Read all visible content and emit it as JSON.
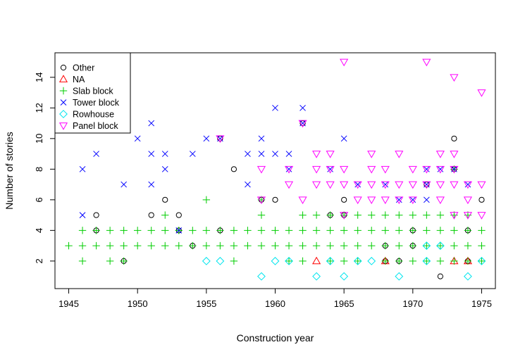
{
  "chart_data": {
    "type": "scatter",
    "xlabel": "Construction year",
    "ylabel": "Number of stories",
    "xlim": [
      1944,
      1976
    ],
    "ylim": [
      0.2,
      15.6
    ],
    "x_ticks": [
      1945,
      1950,
      1955,
      1960,
      1965,
      1970,
      1975
    ],
    "y_ticks": [
      2,
      4,
      6,
      8,
      10,
      12,
      14
    ],
    "grid": false,
    "legend_position": "top-left",
    "series": [
      {
        "name": "Other",
        "marker": "circle",
        "color": "#000000",
        "points": [
          [
            1947,
            5
          ],
          [
            1947,
            4
          ],
          [
            1949,
            2
          ],
          [
            1951,
            5
          ],
          [
            1952,
            6
          ],
          [
            1953,
            5
          ],
          [
            1953,
            4
          ],
          [
            1954,
            3
          ],
          [
            1956,
            10
          ],
          [
            1956,
            4
          ],
          [
            1957,
            8
          ],
          [
            1959,
            6
          ],
          [
            1960,
            6
          ],
          [
            1962,
            11
          ],
          [
            1964,
            5
          ],
          [
            1965,
            6
          ],
          [
            1965,
            5
          ],
          [
            1968,
            3
          ],
          [
            1968,
            2
          ],
          [
            1969,
            2
          ],
          [
            1970,
            4
          ],
          [
            1970,
            3
          ],
          [
            1971,
            7
          ],
          [
            1972,
            1
          ],
          [
            1973,
            10
          ],
          [
            1973,
            8
          ],
          [
            1974,
            4
          ],
          [
            1974,
            2
          ],
          [
            1975,
            6
          ]
        ]
      },
      {
        "name": "NA",
        "marker": "triangle-up",
        "color": "#ff0000",
        "points": [
          [
            1963,
            2
          ],
          [
            1968,
            2
          ],
          [
            1973,
            2
          ],
          [
            1974,
            2
          ]
        ]
      },
      {
        "name": "Slab block",
        "marker": "plus",
        "color": "#00cd00",
        "points": [
          [
            1945,
            3
          ],
          [
            1946,
            4
          ],
          [
            1946,
            3
          ],
          [
            1946,
            2
          ],
          [
            1947,
            4
          ],
          [
            1947,
            3
          ],
          [
            1948,
            4
          ],
          [
            1948,
            3
          ],
          [
            1948,
            2
          ],
          [
            1949,
            4
          ],
          [
            1949,
            3
          ],
          [
            1949,
            2
          ],
          [
            1950,
            4
          ],
          [
            1950,
            3
          ],
          [
            1951,
            4
          ],
          [
            1951,
            3
          ],
          [
            1952,
            5
          ],
          [
            1952,
            4
          ],
          [
            1952,
            3
          ],
          [
            1953,
            4
          ],
          [
            1953,
            3
          ],
          [
            1954,
            4
          ],
          [
            1954,
            3
          ],
          [
            1955,
            6
          ],
          [
            1955,
            4
          ],
          [
            1955,
            3
          ],
          [
            1956,
            4
          ],
          [
            1956,
            3
          ],
          [
            1957,
            4
          ],
          [
            1957,
            3
          ],
          [
            1957,
            2
          ],
          [
            1958,
            4
          ],
          [
            1958,
            3
          ],
          [
            1959,
            6
          ],
          [
            1959,
            5
          ],
          [
            1959,
            4
          ],
          [
            1959,
            3
          ],
          [
            1960,
            4
          ],
          [
            1960,
            3
          ],
          [
            1961,
            4
          ],
          [
            1961,
            3
          ],
          [
            1961,
            2
          ],
          [
            1962,
            5
          ],
          [
            1962,
            4
          ],
          [
            1962,
            3
          ],
          [
            1962,
            2
          ],
          [
            1963,
            5
          ],
          [
            1963,
            4
          ],
          [
            1963,
            3
          ],
          [
            1964,
            5
          ],
          [
            1964,
            4
          ],
          [
            1964,
            3
          ],
          [
            1964,
            2
          ],
          [
            1965,
            5
          ],
          [
            1965,
            4
          ],
          [
            1965,
            3
          ],
          [
            1965,
            2
          ],
          [
            1966,
            5
          ],
          [
            1966,
            4
          ],
          [
            1966,
            3
          ],
          [
            1966,
            2
          ],
          [
            1967,
            5
          ],
          [
            1967,
            4
          ],
          [
            1967,
            3
          ],
          [
            1968,
            5
          ],
          [
            1968,
            4
          ],
          [
            1968,
            3
          ],
          [
            1968,
            2
          ],
          [
            1969,
            5
          ],
          [
            1969,
            4
          ],
          [
            1969,
            3
          ],
          [
            1969,
            2
          ],
          [
            1970,
            5
          ],
          [
            1970,
            4
          ],
          [
            1970,
            3
          ],
          [
            1970,
            2
          ],
          [
            1971,
            5
          ],
          [
            1971,
            4
          ],
          [
            1971,
            3
          ],
          [
            1971,
            2
          ],
          [
            1972,
            5
          ],
          [
            1972,
            4
          ],
          [
            1972,
            3
          ],
          [
            1972,
            2
          ],
          [
            1973,
            8
          ],
          [
            1973,
            5
          ],
          [
            1973,
            4
          ],
          [
            1973,
            3
          ],
          [
            1973,
            2
          ],
          [
            1974,
            5
          ],
          [
            1974,
            4
          ],
          [
            1974,
            3
          ],
          [
            1974,
            2
          ],
          [
            1975,
            4
          ],
          [
            1975,
            3
          ],
          [
            1975,
            2
          ]
        ]
      },
      {
        "name": "Tower block",
        "marker": "cross",
        "color": "#0000ff",
        "points": [
          [
            1946,
            8
          ],
          [
            1946,
            5
          ],
          [
            1947,
            9
          ],
          [
            1949,
            7
          ],
          [
            1950,
            10
          ],
          [
            1951,
            11
          ],
          [
            1951,
            9
          ],
          [
            1951,
            7
          ],
          [
            1952,
            9
          ],
          [
            1952,
            8
          ],
          [
            1953,
            4
          ],
          [
            1954,
            9
          ],
          [
            1955,
            10
          ],
          [
            1956,
            10
          ],
          [
            1958,
            9
          ],
          [
            1958,
            7
          ],
          [
            1959,
            10
          ],
          [
            1959,
            9
          ],
          [
            1960,
            12
          ],
          [
            1960,
            9
          ],
          [
            1961,
            9
          ],
          [
            1961,
            8
          ],
          [
            1962,
            12
          ],
          [
            1962,
            11
          ],
          [
            1964,
            8
          ],
          [
            1965,
            10
          ],
          [
            1966,
            7
          ],
          [
            1968,
            7
          ],
          [
            1969,
            6
          ],
          [
            1970,
            6
          ],
          [
            1971,
            8
          ],
          [
            1971,
            7
          ],
          [
            1971,
            6
          ],
          [
            1972,
            8
          ],
          [
            1973,
            8
          ],
          [
            1974,
            7
          ]
        ]
      },
      {
        "name": "Rowhouse",
        "marker": "diamond",
        "color": "#00e5ee",
        "points": [
          [
            1955,
            2
          ],
          [
            1956,
            2
          ],
          [
            1959,
            1
          ],
          [
            1960,
            2
          ],
          [
            1961,
            2
          ],
          [
            1963,
            1
          ],
          [
            1964,
            2
          ],
          [
            1965,
            1
          ],
          [
            1966,
            2
          ],
          [
            1967,
            2
          ],
          [
            1969,
            1
          ],
          [
            1971,
            3
          ],
          [
            1971,
            2
          ],
          [
            1972,
            3
          ],
          [
            1974,
            1
          ],
          [
            1975,
            2
          ]
        ]
      },
      {
        "name": "Panel block",
        "marker": "triangle-down",
        "color": "#ff00ff",
        "points": [
          [
            1956,
            10
          ],
          [
            1959,
            8
          ],
          [
            1959,
            6
          ],
          [
            1961,
            8
          ],
          [
            1961,
            7
          ],
          [
            1962,
            11
          ],
          [
            1962,
            6
          ],
          [
            1963,
            9
          ],
          [
            1963,
            8
          ],
          [
            1963,
            7
          ],
          [
            1964,
            9
          ],
          [
            1964,
            8
          ],
          [
            1964,
            7
          ],
          [
            1965,
            15
          ],
          [
            1965,
            8
          ],
          [
            1965,
            7
          ],
          [
            1965,
            5
          ],
          [
            1966,
            7
          ],
          [
            1966,
            6
          ],
          [
            1967,
            9
          ],
          [
            1967,
            8
          ],
          [
            1967,
            7
          ],
          [
            1967,
            6
          ],
          [
            1968,
            8
          ],
          [
            1968,
            7
          ],
          [
            1968,
            6
          ],
          [
            1969,
            9
          ],
          [
            1969,
            7
          ],
          [
            1969,
            6
          ],
          [
            1970,
            8
          ],
          [
            1970,
            7
          ],
          [
            1970,
            6
          ],
          [
            1971,
            15
          ],
          [
            1971,
            8
          ],
          [
            1971,
            7
          ],
          [
            1972,
            9
          ],
          [
            1972,
            8
          ],
          [
            1972,
            7
          ],
          [
            1972,
            6
          ],
          [
            1973,
            14
          ],
          [
            1973,
            9
          ],
          [
            1973,
            8
          ],
          [
            1973,
            7
          ],
          [
            1973,
            5
          ],
          [
            1974,
            7
          ],
          [
            1974,
            6
          ],
          [
            1974,
            5
          ],
          [
            1975,
            13
          ],
          [
            1975,
            7
          ],
          [
            1975,
            5
          ]
        ]
      }
    ]
  }
}
